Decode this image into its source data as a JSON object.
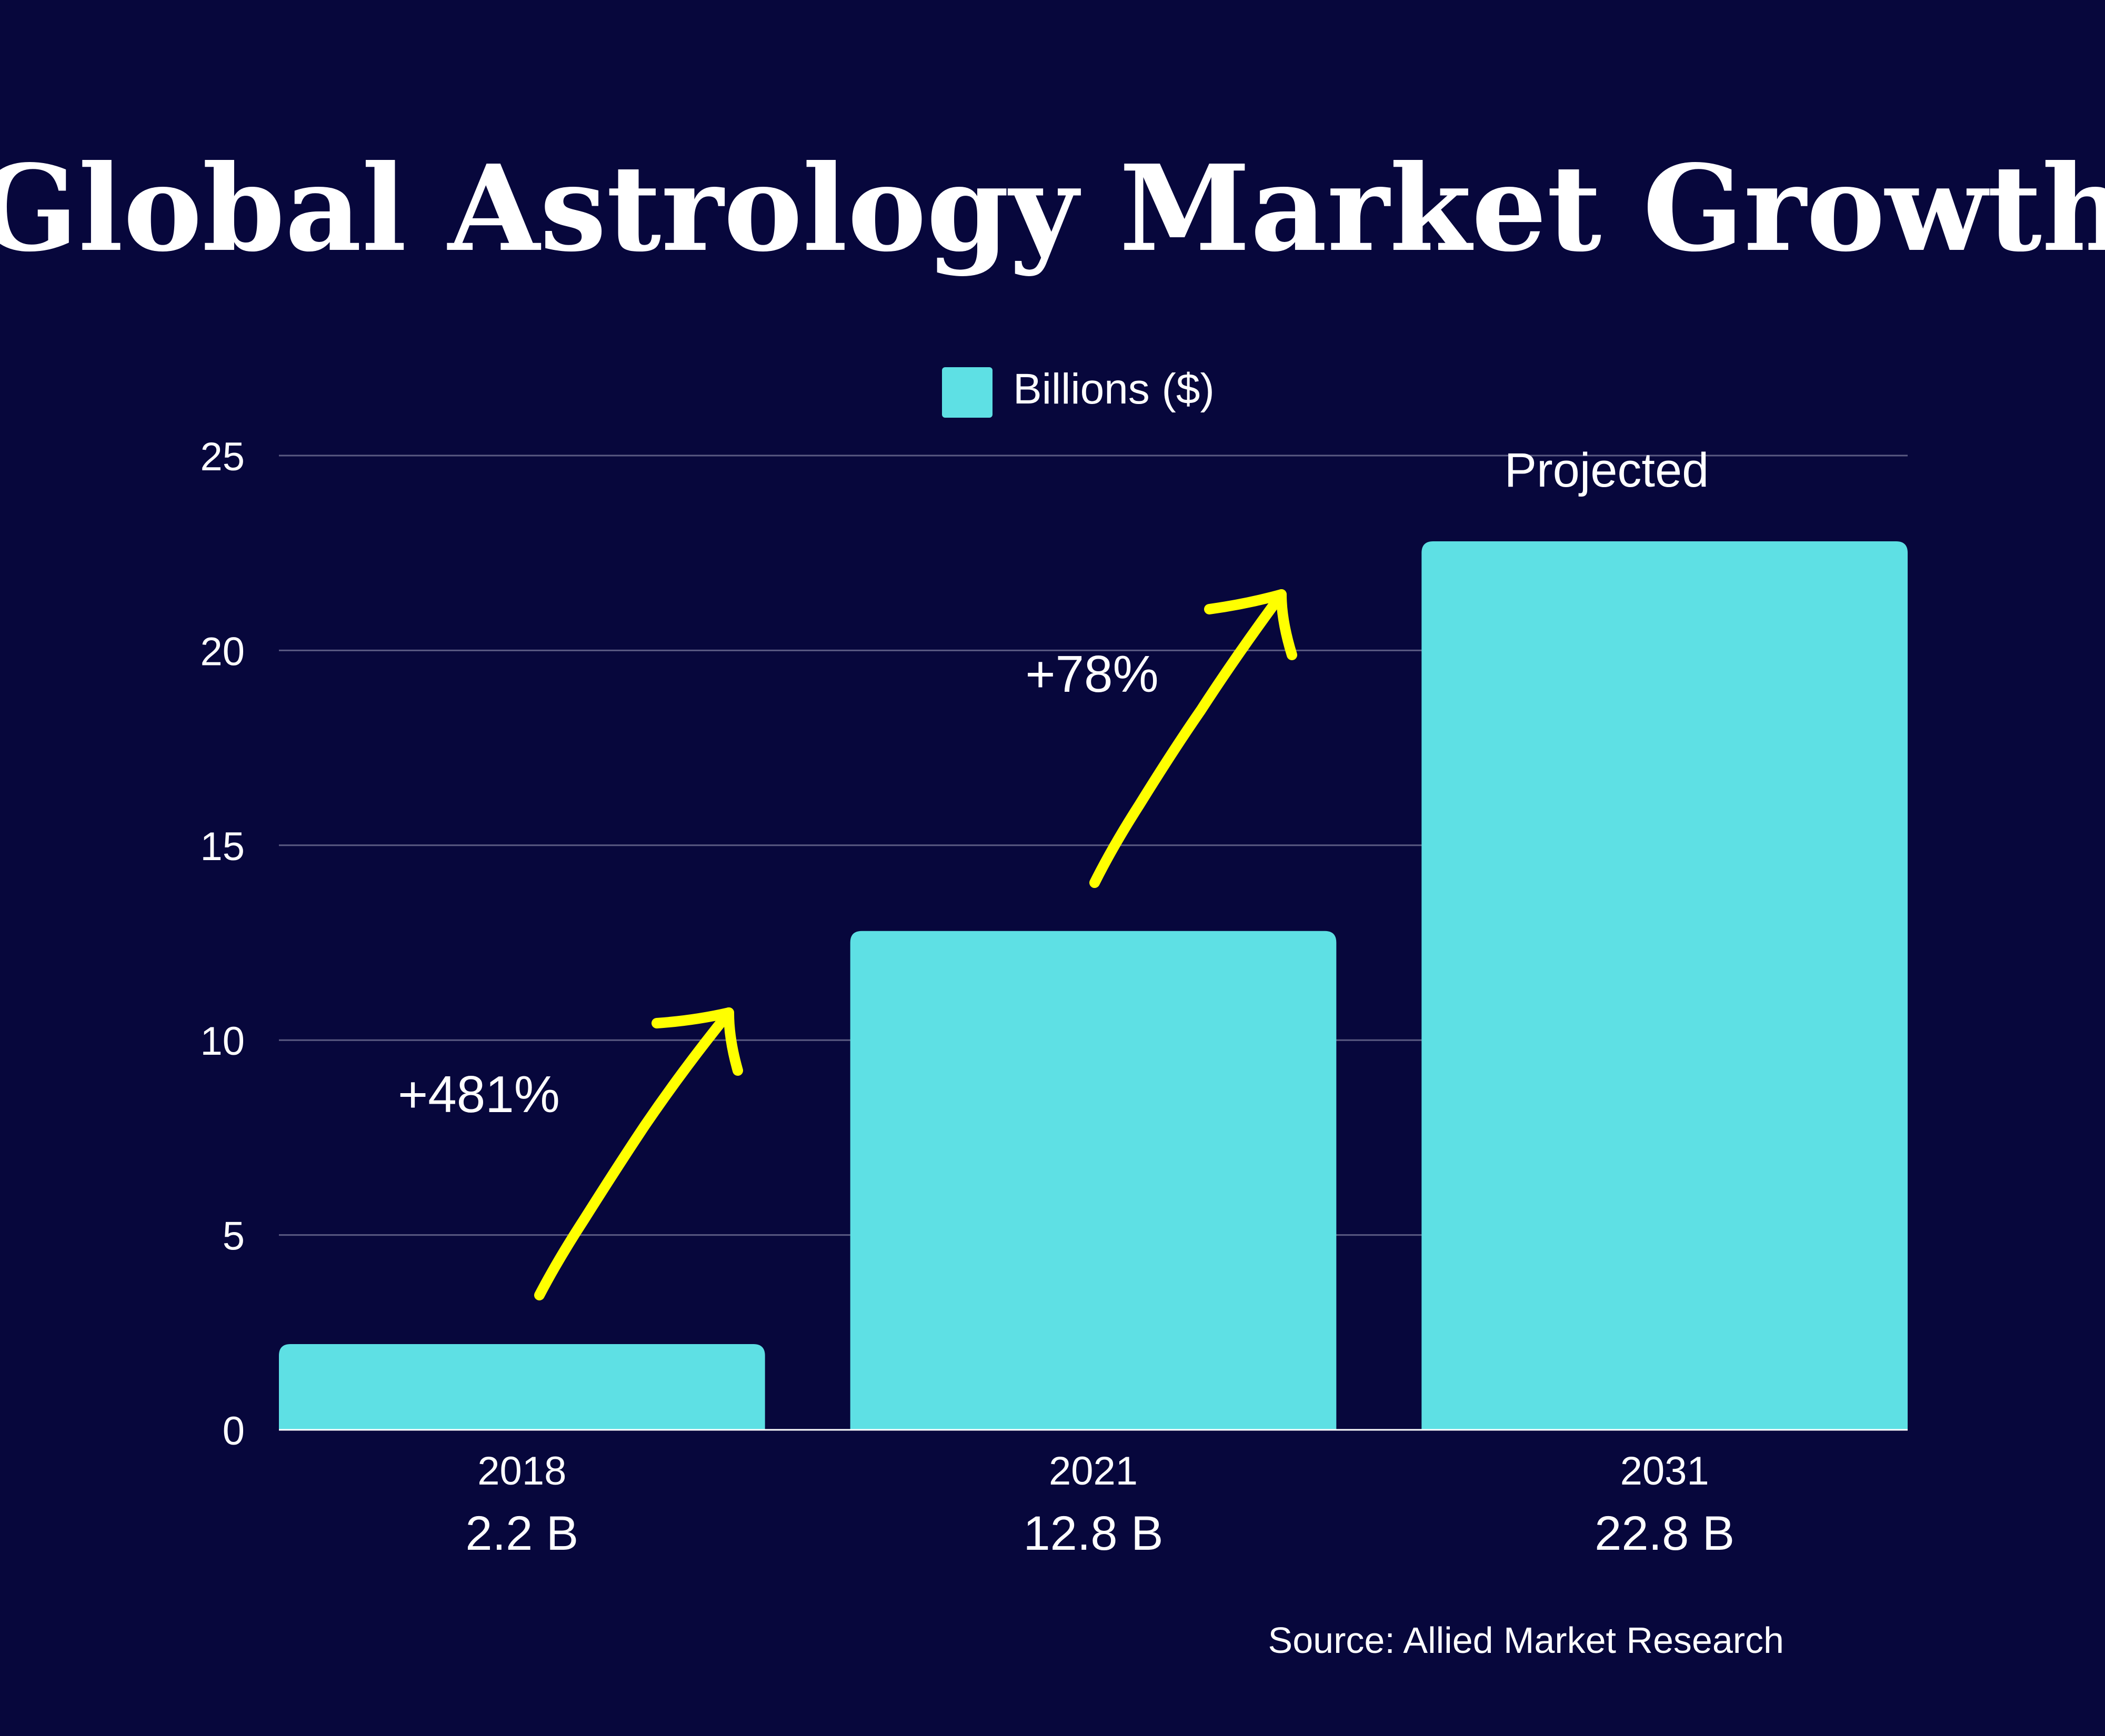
{
  "colors": {
    "background": "#07073c",
    "bar": "#5ee0e4",
    "arrow": "#ffff00",
    "text": "#ffffff",
    "grid": "#5a5a82"
  },
  "chart_data": {
    "type": "bar",
    "title": "Global Astrology Market Growth",
    "legend": {
      "label": "Billions ($)",
      "placement": "top-center"
    },
    "categories": [
      "2018",
      "2021",
      "2031"
    ],
    "values": [
      2.2,
      12.8,
      22.8
    ],
    "value_labels": [
      "2.2 B",
      "12.8 B",
      "22.8 B"
    ],
    "ylim": [
      0,
      25
    ],
    "yticks": [
      "0",
      "5",
      "10",
      "15",
      "20",
      "25"
    ],
    "grid": true,
    "annotations": {
      "growth_1": "+481%",
      "growth_2": "+78%",
      "projected": "Projected"
    },
    "source": "Source: Allied Market Research"
  }
}
